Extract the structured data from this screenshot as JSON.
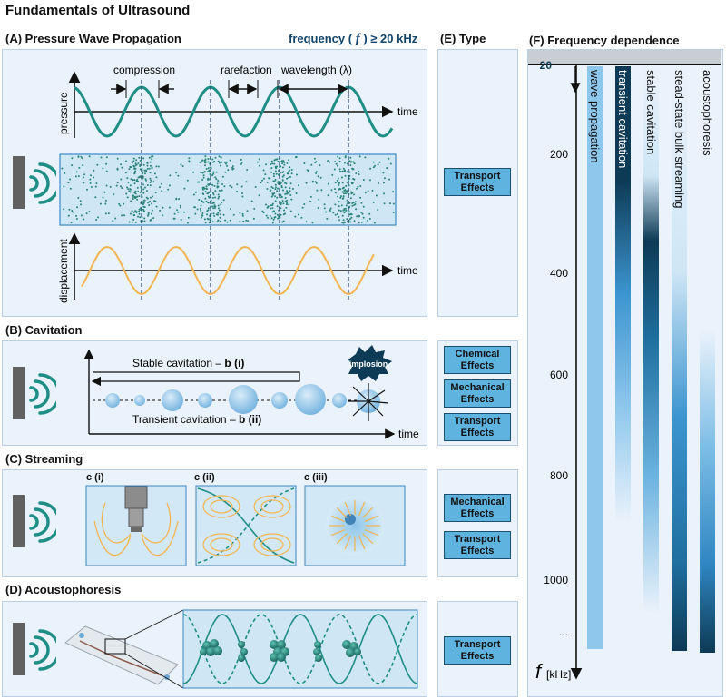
{
  "title": "Fundamentals of Ultrasound",
  "panelA": {
    "title": "(A) Pressure Wave Propagation",
    "frequency_prefix": "frequency (",
    "frequency_symbol": "f",
    "frequency_suffix": ") ≥ 20 kHz",
    "compression": "compression",
    "rarefaction": "rarefaction",
    "wavelength": "wavelength (λ)",
    "pressure": "pressure",
    "time": "time",
    "displacement": "displacement"
  },
  "panelB": {
    "title": "(B) Cavitation",
    "stable": "Stable cavitation – ",
    "stable_bold": "b (i)",
    "transient": "Transient cavitation – ",
    "transient_bold": "b (ii)",
    "implosion": "implosion",
    "time": "time"
  },
  "panelC": {
    "title": "(C) Streaming",
    "sub1": "c (i)",
    "sub2": "c (ii)",
    "sub3": "c (iii)"
  },
  "panelD": {
    "title": "(D) Acoustophoresis"
  },
  "panelE": {
    "title": "(E) Type",
    "a": [
      "Transport Effects"
    ],
    "b": [
      "Chemical Effects",
      "Mechanical Effects",
      "Transport Effects"
    ],
    "c": [
      "Mechanical Effects",
      "Transport Effects"
    ],
    "d": [
      "Transport Effects"
    ]
  },
  "panelF": {
    "title": "(F) Frequency dependence",
    "ticks": [
      "20",
      "200",
      "400",
      "600",
      "800",
      "1000",
      "..."
    ],
    "bars": [
      "wave propagation",
      "transient cavitation",
      "stable cavitation",
      "stead-state bulk streaming",
      "acoustophoresis"
    ],
    "axis_symbol": "f",
    "axis_unit": "[kHz]"
  },
  "colors": {
    "teal": "#1e8e86",
    "orange": "#f2b451",
    "panel": "#eaf2fb",
    "box": "#5fb3df",
    "navy": "#0d3a55"
  }
}
